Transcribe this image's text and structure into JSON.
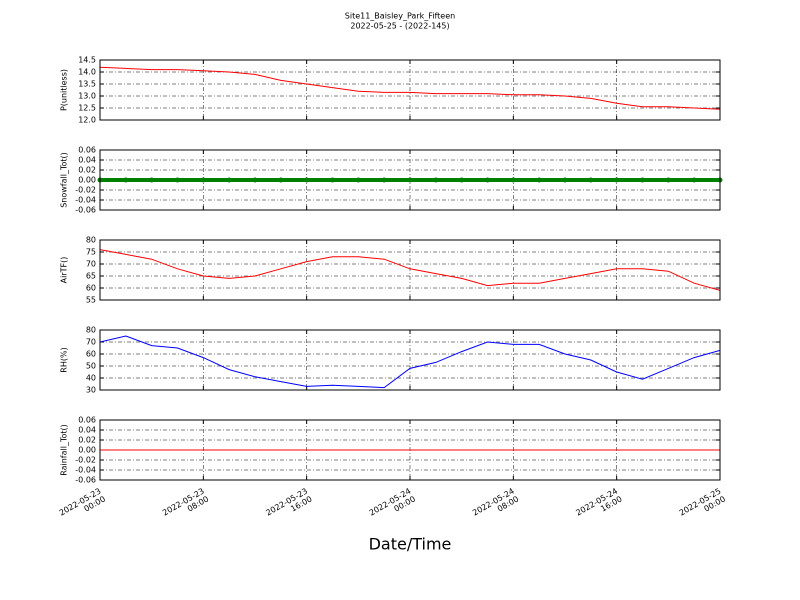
{
  "title": "Site11_Baisley_Park_Fifteen",
  "subtitle": "2022-05-25 - (2022-145)",
  "chart_data": [
    {
      "type": "line",
      "ylabel": "P(unitless)",
      "color": "#ff0000",
      "x": [
        "2022-05-23 00:00",
        "2022-05-23 02:00",
        "2022-05-23 04:00",
        "2022-05-23 06:00",
        "2022-05-23 08:00",
        "2022-05-23 10:00",
        "2022-05-23 12:00",
        "2022-05-23 14:00",
        "2022-05-23 16:00",
        "2022-05-23 18:00",
        "2022-05-23 20:00",
        "2022-05-23 22:00",
        "2022-05-24 00:00",
        "2022-05-24 02:00",
        "2022-05-24 04:00",
        "2022-05-24 06:00",
        "2022-05-24 08:00",
        "2022-05-24 10:00",
        "2022-05-24 12:00",
        "2022-05-24 14:00",
        "2022-05-24 16:00",
        "2022-05-24 18:00",
        "2022-05-24 20:00",
        "2022-05-24 22:00",
        "2022-05-25 00:00"
      ],
      "values": [
        14.2,
        14.15,
        14.1,
        14.1,
        14.05,
        14.0,
        13.9,
        13.65,
        13.5,
        13.35,
        13.2,
        13.15,
        13.15,
        13.1,
        13.1,
        13.1,
        13.05,
        13.05,
        13.0,
        12.9,
        12.7,
        12.55,
        12.55,
        12.5,
        12.45
      ],
      "xlim": [
        "2022-05-23 00:00",
        "2022-05-25 00:00"
      ],
      "xticks": [
        "2022-05-23 00:00",
        "2022-05-23 08:00",
        "2022-05-23 16:00",
        "2022-05-24 00:00",
        "2022-05-24 08:00",
        "2022-05-24 16:00",
        "2022-05-25 00:00"
      ],
      "ylim": [
        12,
        14.5
      ],
      "yticks": [
        {
          "value": 12,
          "label": "12.0"
        },
        12.5,
        {
          "value": 13,
          "label": "13.0"
        },
        13.5,
        {
          "value": 14,
          "label": "14.0"
        },
        14.5
      ],
      "grid": true
    },
    {
      "type": "line",
      "ylabel": "Snowfall_Tot()",
      "color": "#008000",
      "style": "dots",
      "x": [
        "2022-05-23 00:00",
        "2022-05-23 02:00",
        "2022-05-23 04:00",
        "2022-05-23 06:00",
        "2022-05-23 08:00",
        "2022-05-23 10:00",
        "2022-05-23 12:00",
        "2022-05-23 14:00",
        "2022-05-23 16:00",
        "2022-05-23 18:00",
        "2022-05-23 20:00",
        "2022-05-23 22:00",
        "2022-05-24 00:00",
        "2022-05-24 02:00",
        "2022-05-24 04:00",
        "2022-05-24 06:00",
        "2022-05-24 08:00",
        "2022-05-24 10:00",
        "2022-05-24 12:00",
        "2022-05-24 14:00",
        "2022-05-24 16:00",
        "2022-05-24 18:00",
        "2022-05-24 20:00",
        "2022-05-24 22:00",
        "2022-05-25 00:00"
      ],
      "values": [
        0,
        0,
        0,
        0,
        0,
        0,
        0,
        0,
        0,
        0,
        0,
        0,
        0,
        0,
        0,
        0,
        0,
        0,
        0,
        0,
        0,
        0,
        0,
        0,
        0
      ],
      "xlim": [
        "2022-05-23 00:00",
        "2022-05-25 00:00"
      ],
      "xticks": [
        "2022-05-23 00:00",
        "2022-05-23 08:00",
        "2022-05-23 16:00",
        "2022-05-24 00:00",
        "2022-05-24 08:00",
        "2022-05-24 16:00",
        "2022-05-25 00:00"
      ],
      "ylim": [
        -0.06,
        0.06
      ],
      "yticks": [
        {
          "value": -0.06,
          "label": "-0.06"
        },
        {
          "value": -0.04,
          "label": "-0.04"
        },
        {
          "value": -0.02,
          "label": "-0.02"
        },
        {
          "value": 0,
          "label": "0.00"
        },
        0.02,
        0.04,
        0.06
      ],
      "grid": true
    },
    {
      "type": "line",
      "ylabel": "AirTF()",
      "color": "#ff0000",
      "x": [
        "2022-05-23 00:00",
        "2022-05-23 02:00",
        "2022-05-23 04:00",
        "2022-05-23 06:00",
        "2022-05-23 08:00",
        "2022-05-23 10:00",
        "2022-05-23 12:00",
        "2022-05-23 14:00",
        "2022-05-23 16:00",
        "2022-05-23 18:00",
        "2022-05-23 20:00",
        "2022-05-23 22:00",
        "2022-05-24 00:00",
        "2022-05-24 02:00",
        "2022-05-24 04:00",
        "2022-05-24 06:00",
        "2022-05-24 08:00",
        "2022-05-24 10:00",
        "2022-05-24 12:00",
        "2022-05-24 14:00",
        "2022-05-24 16:00",
        "2022-05-24 18:00",
        "2022-05-24 20:00",
        "2022-05-24 22:00",
        "2022-05-25 00:00"
      ],
      "values": [
        76,
        74,
        72,
        68,
        65,
        64,
        65,
        68,
        71,
        73,
        73,
        72,
        68,
        66,
        64,
        61,
        62,
        62,
        64,
        66,
        68,
        68,
        67,
        62,
        59
      ],
      "xlim": [
        "2022-05-23 00:00",
        "2022-05-25 00:00"
      ],
      "xticks": [
        "2022-05-23 00:00",
        "2022-05-23 08:00",
        "2022-05-23 16:00",
        "2022-05-24 00:00",
        "2022-05-24 08:00",
        "2022-05-24 16:00",
        "2022-05-25 00:00"
      ],
      "ylim": [
        55,
        80
      ],
      "yticks": [
        55,
        60,
        65,
        70,
        75,
        80
      ],
      "grid": true
    },
    {
      "type": "line",
      "ylabel": "RH(%)",
      "color": "#0000ff",
      "x": [
        "2022-05-23 00:00",
        "2022-05-23 02:00",
        "2022-05-23 04:00",
        "2022-05-23 06:00",
        "2022-05-23 08:00",
        "2022-05-23 10:00",
        "2022-05-23 12:00",
        "2022-05-23 14:00",
        "2022-05-23 16:00",
        "2022-05-23 18:00",
        "2022-05-23 20:00",
        "2022-05-23 22:00",
        "2022-05-24 00:00",
        "2022-05-24 02:00",
        "2022-05-24 04:00",
        "2022-05-24 06:00",
        "2022-05-24 08:00",
        "2022-05-24 10:00",
        "2022-05-24 12:00",
        "2022-05-24 14:00",
        "2022-05-24 16:00",
        "2022-05-24 18:00",
        "2022-05-24 20:00",
        "2022-05-24 22:00",
        "2022-05-25 00:00"
      ],
      "values": [
        70,
        75,
        67,
        65,
        57,
        47,
        41,
        37,
        33,
        34,
        33,
        32,
        48,
        53,
        62,
        70,
        68,
        68,
        60,
        55,
        45,
        39,
        48,
        57,
        63
      ],
      "xlim": [
        "2022-05-23 00:00",
        "2022-05-25 00:00"
      ],
      "xticks": [
        "2022-05-23 00:00",
        "2022-05-23 08:00",
        "2022-05-23 16:00",
        "2022-05-24 00:00",
        "2022-05-24 08:00",
        "2022-05-24 16:00",
        "2022-05-25 00:00"
      ],
      "ylim": [
        30,
        80
      ],
      "yticks": [
        30,
        40,
        50,
        60,
        70,
        80
      ],
      "grid": true
    },
    {
      "type": "line",
      "ylabel": "Rainfall_Tot()",
      "xlabel": "Date/Time",
      "color": "#ff0000",
      "show_xtick_labels": true,
      "x": [
        "2022-05-23 00:00",
        "2022-05-23 02:00",
        "2022-05-23 04:00",
        "2022-05-23 06:00",
        "2022-05-23 08:00",
        "2022-05-23 10:00",
        "2022-05-23 12:00",
        "2022-05-23 14:00",
        "2022-05-23 16:00",
        "2022-05-23 18:00",
        "2022-05-23 20:00",
        "2022-05-23 22:00",
        "2022-05-24 00:00",
        "2022-05-24 02:00",
        "2022-05-24 04:00",
        "2022-05-24 06:00",
        "2022-05-24 08:00",
        "2022-05-24 10:00",
        "2022-05-24 12:00",
        "2022-05-24 14:00",
        "2022-05-24 16:00",
        "2022-05-24 18:00",
        "2022-05-24 20:00",
        "2022-05-24 22:00",
        "2022-05-25 00:00"
      ],
      "values": [
        0,
        0,
        0,
        0,
        0,
        0,
        0,
        0,
        0,
        0,
        0,
        0,
        0,
        0,
        0,
        0,
        0,
        0,
        0,
        0,
        0,
        0,
        0,
        0,
        0
      ],
      "xlim": [
        "2022-05-23 00:00",
        "2022-05-25 00:00"
      ],
      "xticks": [
        "2022-05-23 00:00",
        "2022-05-23 08:00",
        "2022-05-23 16:00",
        "2022-05-24 00:00",
        "2022-05-24 08:00",
        "2022-05-24 16:00",
        "2022-05-25 00:00"
      ],
      "ylim": [
        -0.06,
        0.06
      ],
      "yticks": [
        {
          "value": -0.06,
          "label": "-0.06"
        },
        {
          "value": -0.04,
          "label": "-0.04"
        },
        {
          "value": -0.02,
          "label": "-0.02"
        },
        {
          "value": 0,
          "label": "0.00"
        },
        0.02,
        0.04,
        0.06
      ],
      "grid": true
    }
  ]
}
